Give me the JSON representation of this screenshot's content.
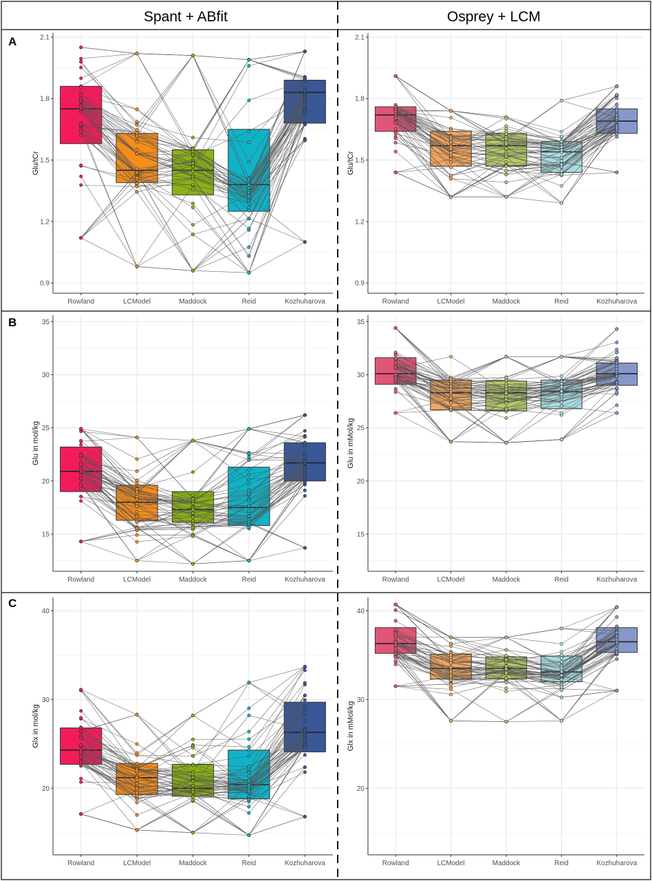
{
  "column_headers": [
    "Spant + ABfit",
    "Osprey + LCM"
  ],
  "row_letters": [
    "A",
    "B",
    "C"
  ],
  "colors": {
    "left": [
      "#f21c5a",
      "#f58c1c",
      "#8ab214",
      "#0fb3c8",
      "#3a5796"
    ],
    "right": [
      "#e15577",
      "#f5a65e",
      "#b5cc69",
      "#a9dde4",
      "#8598c9"
    ],
    "lines": "#555555",
    "grid": "#e6e6e6",
    "border": "#333333"
  },
  "chart_data": [
    {
      "type": "box",
      "row": "A",
      "column": "Spant + ABfit",
      "xlabel": "",
      "ylabel": "Glu/tCr",
      "categories": [
        "Rowland",
        "LCModel",
        "Maddock",
        "Reid",
        "Kozhuharova"
      ],
      "ylim": [
        0.85,
        2.12
      ],
      "yticks": [
        "0.9",
        "1.2",
        "1.5",
        "1.8",
        "2.1"
      ],
      "boxes": [
        {
          "q1": 1.58,
          "median": 1.75,
          "q3": 1.86,
          "min": 1.12,
          "max": 2.05
        },
        {
          "q1": 1.39,
          "median": 1.45,
          "q3": 1.63,
          "min": 0.98,
          "max": 2.02
        },
        {
          "q1": 1.33,
          "median": 1.45,
          "q3": 1.55,
          "min": 0.96,
          "max": 2.01
        },
        {
          "q1": 1.25,
          "median": 1.38,
          "q3": 1.65,
          "min": 0.95,
          "max": 1.99
        },
        {
          "q1": 1.68,
          "median": 1.83,
          "q3": 1.89,
          "min": 1.1,
          "max": 2.03
        }
      ]
    },
    {
      "type": "box",
      "row": "A",
      "column": "Osprey + LCM",
      "xlabel": "",
      "ylabel": "Glu/tCr",
      "categories": [
        "Rowland",
        "LCModel",
        "Maddock",
        "Reid",
        "Kozhuharova"
      ],
      "ylim": [
        0.85,
        2.12
      ],
      "yticks": [
        "0.9",
        "1.2",
        "1.5",
        "1.8",
        "2.1"
      ],
      "boxes": [
        {
          "q1": 1.64,
          "median": 1.72,
          "q3": 1.76,
          "min": 1.44,
          "max": 1.91
        },
        {
          "q1": 1.47,
          "median": 1.57,
          "q3": 1.64,
          "min": 1.32,
          "max": 1.74
        },
        {
          "q1": 1.47,
          "median": 1.57,
          "q3": 1.63,
          "min": 1.32,
          "max": 1.71
        },
        {
          "q1": 1.44,
          "median": 1.54,
          "q3": 1.59,
          "min": 1.29,
          "max": 1.79
        },
        {
          "q1": 1.63,
          "median": 1.69,
          "q3": 1.75,
          "min": 1.44,
          "max": 1.86
        }
      ]
    },
    {
      "type": "box",
      "row": "B",
      "column": "Spant + ABfit",
      "xlabel": "",
      "ylabel": "Glu in mol/kg",
      "categories": [
        "Rowland",
        "LCModel",
        "Maddock",
        "Reid",
        "Kozhuharova"
      ],
      "ylim": [
        11.5,
        35.6
      ],
      "yticks": [
        "15",
        "20",
        "25",
        "30",
        "35"
      ],
      "boxes": [
        {
          "q1": 19.0,
          "median": 20.9,
          "q3": 23.2,
          "min": 14.3,
          "max": 24.9
        },
        {
          "q1": 16.3,
          "median": 18.0,
          "q3": 19.6,
          "min": 12.5,
          "max": 24.1
        },
        {
          "q1": 16.1,
          "median": 17.3,
          "q3": 19.0,
          "min": 12.2,
          "max": 23.8
        },
        {
          "q1": 15.8,
          "median": 17.5,
          "q3": 21.3,
          "min": 12.5,
          "max": 24.9
        },
        {
          "q1": 20.0,
          "median": 21.7,
          "q3": 23.6,
          "min": 13.7,
          "max": 26.2
        }
      ]
    },
    {
      "type": "box",
      "row": "B",
      "column": "Osprey + LCM",
      "xlabel": "",
      "ylabel": "Glu in mMol/kg",
      "categories": [
        "Rowland",
        "LCModel",
        "Maddock",
        "Reid",
        "Kozhuharova"
      ],
      "ylim": [
        11.5,
        35.6
      ],
      "yticks": [
        "15",
        "20",
        "25",
        "30",
        "35"
      ],
      "boxes": [
        {
          "q1": 29.1,
          "median": 30.1,
          "q3": 31.6,
          "min": 26.4,
          "max": 34.4
        },
        {
          "q1": 26.7,
          "median": 28.3,
          "q3": 29.5,
          "min": 23.7,
          "max": 31.7
        },
        {
          "q1": 26.6,
          "median": 28.3,
          "q3": 29.4,
          "min": 23.6,
          "max": 31.7
        },
        {
          "q1": 26.8,
          "median": 28.4,
          "q3": 29.5,
          "min": 23.9,
          "max": 31.7
        },
        {
          "q1": 29.0,
          "median": 30.1,
          "q3": 31.1,
          "min": 26.4,
          "max": 34.3
        }
      ]
    },
    {
      "type": "box",
      "row": "C",
      "column": "Spant + ABfit",
      "xlabel": "",
      "ylabel": "Glx in mol/kg",
      "categories": [
        "Rowland",
        "LCModel",
        "Maddock",
        "Reid",
        "Kozhuharova"
      ],
      "ylim": [
        12.5,
        41.5
      ],
      "yticks": [
        "20",
        "30",
        "40"
      ],
      "boxes": [
        {
          "q1": 22.7,
          "median": 24.3,
          "q3": 26.8,
          "min": 17.1,
          "max": 31.1
        },
        {
          "q1": 19.3,
          "median": 21.2,
          "q3": 22.8,
          "min": 15.3,
          "max": 28.3
        },
        {
          "q1": 19.1,
          "median": 20.0,
          "q3": 22.7,
          "min": 15.0,
          "max": 28.2
        },
        {
          "q1": 18.8,
          "median": 20.4,
          "q3": 24.3,
          "min": 14.7,
          "max": 31.9
        },
        {
          "q1": 24.1,
          "median": 26.3,
          "q3": 29.7,
          "min": 16.8,
          "max": 33.7
        }
      ]
    },
    {
      "type": "box",
      "row": "C",
      "column": "Osprey + LCM",
      "xlabel": "",
      "ylabel": "Glx in mMol/kg",
      "categories": [
        "Rowland",
        "LCModel",
        "Maddock",
        "Reid",
        "Kozhuharova"
      ],
      "ylim": [
        12.5,
        41.5
      ],
      "yticks": [
        "20",
        "30",
        "40"
      ],
      "boxes": [
        {
          "q1": 35.2,
          "median": 36.3,
          "q3": 38.1,
          "min": 31.5,
          "max": 40.7
        },
        {
          "q1": 32.3,
          "median": 33.5,
          "q3": 35.1,
          "min": 27.6,
          "max": 37.0
        },
        {
          "q1": 32.3,
          "median": 33.5,
          "q3": 34.8,
          "min": 27.5,
          "max": 37.0
        },
        {
          "q1": 32.0,
          "median": 33.1,
          "q3": 34.9,
          "min": 27.6,
          "max": 38.0
        },
        {
          "q1": 35.3,
          "median": 36.5,
          "q3": 38.1,
          "min": 31.0,
          "max": 40.4
        }
      ]
    }
  ]
}
